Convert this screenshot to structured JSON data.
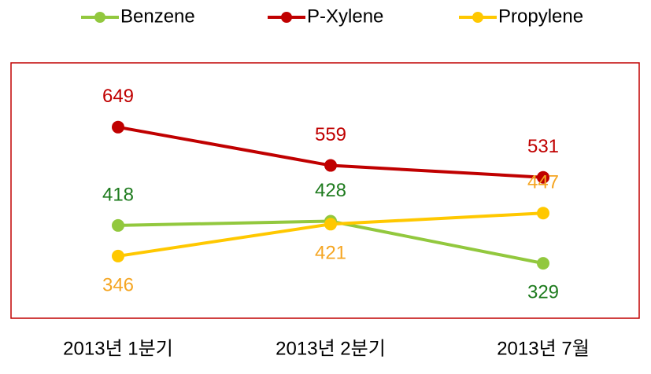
{
  "chart_data": {
    "type": "line",
    "categories": [
      "2013년 1분기",
      "2013년 2분기",
      "2013년 7월"
    ],
    "series": [
      {
        "name": "Benzene",
        "color": "#92c83e",
        "label_color": "#1e7b1e",
        "values": [
          418,
          428,
          329
        ]
      },
      {
        "name": "P-Xylene",
        "color": "#c00000",
        "label_color": "#c00000",
        "values": [
          649,
          559,
          531
        ]
      },
      {
        "name": "Propylene",
        "color": "#ffc800",
        "label_color": "#f5a623",
        "values": [
          346,
          421,
          447
        ]
      }
    ],
    "ylim": [
      200,
      800
    ],
    "frame_color": "#c00000",
    "legend": "top"
  }
}
